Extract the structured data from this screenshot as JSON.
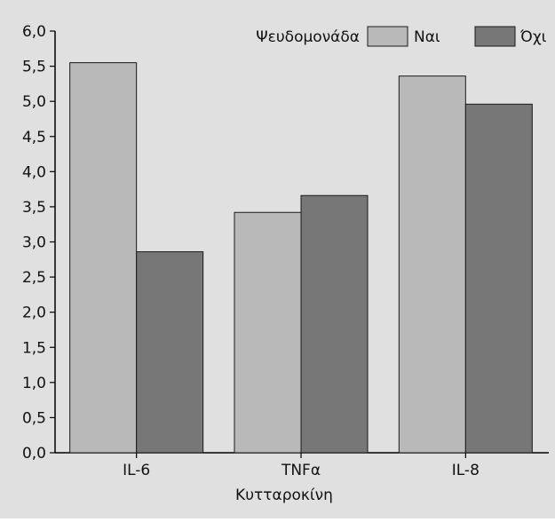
{
  "chart_data": {
    "type": "bar",
    "title": "",
    "xlabel": "Κυτταροκίνη",
    "ylabel": "",
    "categories": [
      "IL-6",
      "TNFα",
      "IL-8"
    ],
    "legend_title": "Ψευδομονάδα",
    "legend_position": "top-right",
    "series": [
      {
        "name": "Ναι",
        "color": "#b9b9b9",
        "values": [
          5.55,
          3.42,
          5.36
        ]
      },
      {
        "name": "Όχι",
        "color": "#777777",
        "values": [
          2.86,
          3.66,
          4.96
        ]
      }
    ],
    "ylim": [
      0,
      6.0
    ],
    "yticks": [
      "0,0",
      "0,5",
      "1,0",
      "1,5",
      "2,0",
      "2,5",
      "3,0",
      "3,5",
      "4,0",
      "4,5",
      "5,0",
      "5,5",
      "6,0"
    ],
    "grid": false,
    "background_color": "#e0e0e0"
  }
}
